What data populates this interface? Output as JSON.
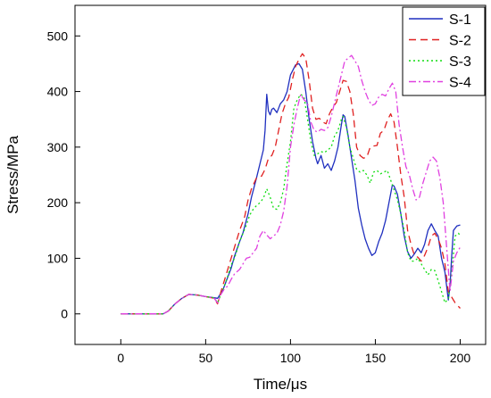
{
  "chart_data": {
    "type": "line",
    "title": "",
    "xlabel": "Time/μs",
    "ylabel": "Stress/MPa",
    "xlim": [
      -27,
      215
    ],
    "ylim": [
      -55,
      555
    ],
    "xticks": [
      0,
      50,
      100,
      150,
      200
    ],
    "yticks": [
      0,
      100,
      200,
      300,
      400,
      500
    ],
    "grid": false,
    "legend_position": "top-right",
    "series": [
      {
        "name": "S-1",
        "color": "#1f2fbf",
        "dash": "solid",
        "points": [
          [
            0,
            0
          ],
          [
            25,
            0
          ],
          [
            28,
            5
          ],
          [
            32,
            18
          ],
          [
            36,
            28
          ],
          [
            40,
            35
          ],
          [
            45,
            34
          ],
          [
            50,
            31
          ],
          [
            55,
            29
          ],
          [
            57,
            28
          ],
          [
            60,
            42
          ],
          [
            62,
            58
          ],
          [
            65,
            82
          ],
          [
            67,
            104
          ],
          [
            70,
            130
          ],
          [
            72,
            146
          ],
          [
            75,
            180
          ],
          [
            77,
            210
          ],
          [
            80,
            245
          ],
          [
            82,
            270
          ],
          [
            84,
            295
          ],
          [
            85,
            330
          ],
          [
            86,
            395
          ],
          [
            87,
            365
          ],
          [
            88,
            358
          ],
          [
            89,
            368
          ],
          [
            90,
            370
          ],
          [
            92,
            362
          ],
          [
            94,
            378
          ],
          [
            96,
            385
          ],
          [
            98,
            400
          ],
          [
            100,
            430
          ],
          [
            103,
            448
          ],
          [
            105,
            450
          ],
          [
            107,
            440
          ],
          [
            109,
            400
          ],
          [
            111,
            350
          ],
          [
            113,
            310
          ],
          [
            115,
            280
          ],
          [
            116,
            270
          ],
          [
            118,
            285
          ],
          [
            120,
            262
          ],
          [
            122,
            270
          ],
          [
            124,
            258
          ],
          [
            126,
            275
          ],
          [
            128,
            300
          ],
          [
            130,
            340
          ],
          [
            131,
            358
          ],
          [
            132,
            355
          ],
          [
            134,
            320
          ],
          [
            136,
            280
          ],
          [
            138,
            240
          ],
          [
            140,
            190
          ],
          [
            142,
            160
          ],
          [
            144,
            135
          ],
          [
            146,
            118
          ],
          [
            148,
            105
          ],
          [
            150,
            110
          ],
          [
            152,
            130
          ],
          [
            154,
            145
          ],
          [
            156,
            168
          ],
          [
            158,
            200
          ],
          [
            160,
            232
          ],
          [
            161,
            230
          ],
          [
            163,
            215
          ],
          [
            165,
            180
          ],
          [
            167,
            140
          ],
          [
            169,
            112
          ],
          [
            171,
            100
          ],
          [
            173,
            108
          ],
          [
            175,
            118
          ],
          [
            177,
            110
          ],
          [
            179,
            125
          ],
          [
            181,
            150
          ],
          [
            183,
            162
          ],
          [
            185,
            150
          ],
          [
            187,
            140
          ],
          [
            189,
            100
          ],
          [
            191,
            75
          ],
          [
            193,
            25
          ],
          [
            194,
            50
          ],
          [
            195,
            105
          ],
          [
            196,
            150
          ],
          [
            198,
            158
          ],
          [
            200,
            160
          ]
        ]
      },
      {
        "name": "S-2",
        "color": "#e02020",
        "dash": "8,5",
        "points": [
          [
            0,
            0
          ],
          [
            25,
            0
          ],
          [
            28,
            5
          ],
          [
            32,
            18
          ],
          [
            36,
            28
          ],
          [
            40,
            35
          ],
          [
            45,
            34
          ],
          [
            50,
            31
          ],
          [
            55,
            28
          ],
          [
            57,
            18
          ],
          [
            59,
            40
          ],
          [
            61,
            60
          ],
          [
            63,
            80
          ],
          [
            65,
            100
          ],
          [
            67,
            120
          ],
          [
            70,
            150
          ],
          [
            73,
            175
          ],
          [
            75,
            205
          ],
          [
            77,
            225
          ],
          [
            80,
            245
          ],
          [
            83,
            248
          ],
          [
            85,
            260
          ],
          [
            87,
            280
          ],
          [
            89,
            285
          ],
          [
            91,
            300
          ],
          [
            93,
            330
          ],
          [
            95,
            360
          ],
          [
            97,
            378
          ],
          [
            99,
            390
          ],
          [
            101,
            420
          ],
          [
            103,
            445
          ],
          [
            105,
            458
          ],
          [
            107,
            468
          ],
          [
            109,
            460
          ],
          [
            111,
            420
          ],
          [
            113,
            370
          ],
          [
            115,
            350
          ],
          [
            117,
            352
          ],
          [
            119,
            345
          ],
          [
            121,
            342
          ],
          [
            123,
            360
          ],
          [
            125,
            372
          ],
          [
            127,
            380
          ],
          [
            129,
            400
          ],
          [
            131,
            420
          ],
          [
            133,
            418
          ],
          [
            135,
            400
          ],
          [
            137,
            360
          ],
          [
            139,
            300
          ],
          [
            141,
            285
          ],
          [
            143,
            280
          ],
          [
            145,
            282
          ],
          [
            147,
            300
          ],
          [
            149,
            302
          ],
          [
            151,
            303
          ],
          [
            153,
            325
          ],
          [
            155,
            330
          ],
          [
            157,
            348
          ],
          [
            159,
            360
          ],
          [
            161,
            345
          ],
          [
            163,
            300
          ],
          [
            165,
            250
          ],
          [
            167,
            210
          ],
          [
            169,
            150
          ],
          [
            171,
            125
          ],
          [
            173,
            105
          ],
          [
            175,
            102
          ],
          [
            177,
            95
          ],
          [
            179,
            105
          ],
          [
            181,
            120
          ],
          [
            183,
            140
          ],
          [
            185,
            145
          ],
          [
            187,
            135
          ],
          [
            189,
            118
          ],
          [
            191,
            90
          ],
          [
            193,
            40
          ],
          [
            195,
            30
          ],
          [
            197,
            20
          ],
          [
            200,
            10
          ]
        ]
      },
      {
        "name": "S-3",
        "color": "#10dd10",
        "dash": "2,3",
        "points": [
          [
            0,
            0
          ],
          [
            25,
            0
          ],
          [
            28,
            5
          ],
          [
            32,
            18
          ],
          [
            36,
            28
          ],
          [
            40,
            35
          ],
          [
            45,
            34
          ],
          [
            50,
            31
          ],
          [
            55,
            29
          ],
          [
            57,
            20
          ],
          [
            59,
            35
          ],
          [
            61,
            50
          ],
          [
            63,
            68
          ],
          [
            65,
            88
          ],
          [
            67,
            100
          ],
          [
            70,
            130
          ],
          [
            72,
            145
          ],
          [
            74,
            160
          ],
          [
            76,
            178
          ],
          [
            78,
            188
          ],
          [
            80,
            195
          ],
          [
            82,
            200
          ],
          [
            84,
            208
          ],
          [
            86,
            225
          ],
          [
            88,
            210
          ],
          [
            90,
            190
          ],
          [
            92,
            188
          ],
          [
            94,
            200
          ],
          [
            96,
            225
          ],
          [
            98,
            270
          ],
          [
            100,
            310
          ],
          [
            102,
            370
          ],
          [
            104,
            385
          ],
          [
            106,
            395
          ],
          [
            108,
            390
          ],
          [
            110,
            352
          ],
          [
            112,
            310
          ],
          [
            114,
            285
          ],
          [
            116,
            288
          ],
          [
            118,
            292
          ],
          [
            120,
            290
          ],
          [
            122,
            295
          ],
          [
            124,
            300
          ],
          [
            126,
            320
          ],
          [
            128,
            330
          ],
          [
            130,
            350
          ],
          [
            131,
            355
          ],
          [
            133,
            335
          ],
          [
            135,
            300
          ],
          [
            137,
            280
          ],
          [
            139,
            260
          ],
          [
            141,
            255
          ],
          [
            143,
            258
          ],
          [
            145,
            250
          ],
          [
            147,
            235
          ],
          [
            149,
            255
          ],
          [
            151,
            258
          ],
          [
            153,
            252
          ],
          [
            155,
            255
          ],
          [
            157,
            258
          ],
          [
            160,
            232
          ],
          [
            163,
            205
          ],
          [
            165,
            180
          ],
          [
            167,
            150
          ],
          [
            169,
            110
          ],
          [
            171,
            95
          ],
          [
            173,
            95
          ],
          [
            175,
            100
          ],
          [
            177,
            90
          ],
          [
            179,
            80
          ],
          [
            181,
            70
          ],
          [
            183,
            80
          ],
          [
            185,
            78
          ],
          [
            187,
            60
          ],
          [
            189,
            40
          ],
          [
            191,
            20
          ],
          [
            193,
            28
          ],
          [
            195,
            75
          ],
          [
            197,
            140
          ],
          [
            199,
            145
          ],
          [
            200,
            140
          ]
        ]
      },
      {
        "name": "S-4",
        "color": "#e040e0",
        "dash": "8,3,2,3",
        "points": [
          [
            0,
            0
          ],
          [
            25,
            0
          ],
          [
            28,
            5
          ],
          [
            32,
            18
          ],
          [
            36,
            28
          ],
          [
            40,
            35
          ],
          [
            45,
            34
          ],
          [
            50,
            31
          ],
          [
            55,
            28
          ],
          [
            57,
            20
          ],
          [
            59,
            35
          ],
          [
            61,
            45
          ],
          [
            63,
            50
          ],
          [
            65,
            62
          ],
          [
            67,
            72
          ],
          [
            70,
            80
          ],
          [
            72,
            90
          ],
          [
            74,
            100
          ],
          [
            76,
            102
          ],
          [
            78,
            110
          ],
          [
            80,
            118
          ],
          [
            82,
            140
          ],
          [
            84,
            150
          ],
          [
            86,
            142
          ],
          [
            88,
            135
          ],
          [
            90,
            140
          ],
          [
            92,
            145
          ],
          [
            94,
            160
          ],
          [
            96,
            185
          ],
          [
            98,
            230
          ],
          [
            100,
            300
          ],
          [
            102,
            340
          ],
          [
            104,
            370
          ],
          [
            106,
            395
          ],
          [
            108,
            385
          ],
          [
            110,
            380
          ],
          [
            112,
            345
          ],
          [
            114,
            330
          ],
          [
            116,
            327
          ],
          [
            118,
            332
          ],
          [
            120,
            330
          ],
          [
            122,
            335
          ],
          [
            124,
            355
          ],
          [
            126,
            380
          ],
          [
            128,
            405
          ],
          [
            130,
            430
          ],
          [
            132,
            455
          ],
          [
            134,
            460
          ],
          [
            136,
            465
          ],
          [
            138,
            455
          ],
          [
            140,
            445
          ],
          [
            142,
            420
          ],
          [
            144,
            400
          ],
          [
            146,
            385
          ],
          [
            148,
            375
          ],
          [
            150,
            378
          ],
          [
            152,
            390
          ],
          [
            154,
            395
          ],
          [
            156,
            392
          ],
          [
            158,
            405
          ],
          [
            160,
            415
          ],
          [
            162,
            400
          ],
          [
            164,
            340
          ],
          [
            166,
            300
          ],
          [
            168,
            265
          ],
          [
            170,
            250
          ],
          [
            172,
            225
          ],
          [
            174,
            205
          ],
          [
            176,
            210
          ],
          [
            178,
            235
          ],
          [
            180,
            255
          ],
          [
            182,
            275
          ],
          [
            184,
            282
          ],
          [
            186,
            275
          ],
          [
            188,
            245
          ],
          [
            190,
            200
          ],
          [
            192,
            120
          ],
          [
            194,
            40
          ],
          [
            196,
            95
          ],
          [
            198,
            110
          ],
          [
            200,
            120
          ]
        ]
      }
    ]
  }
}
